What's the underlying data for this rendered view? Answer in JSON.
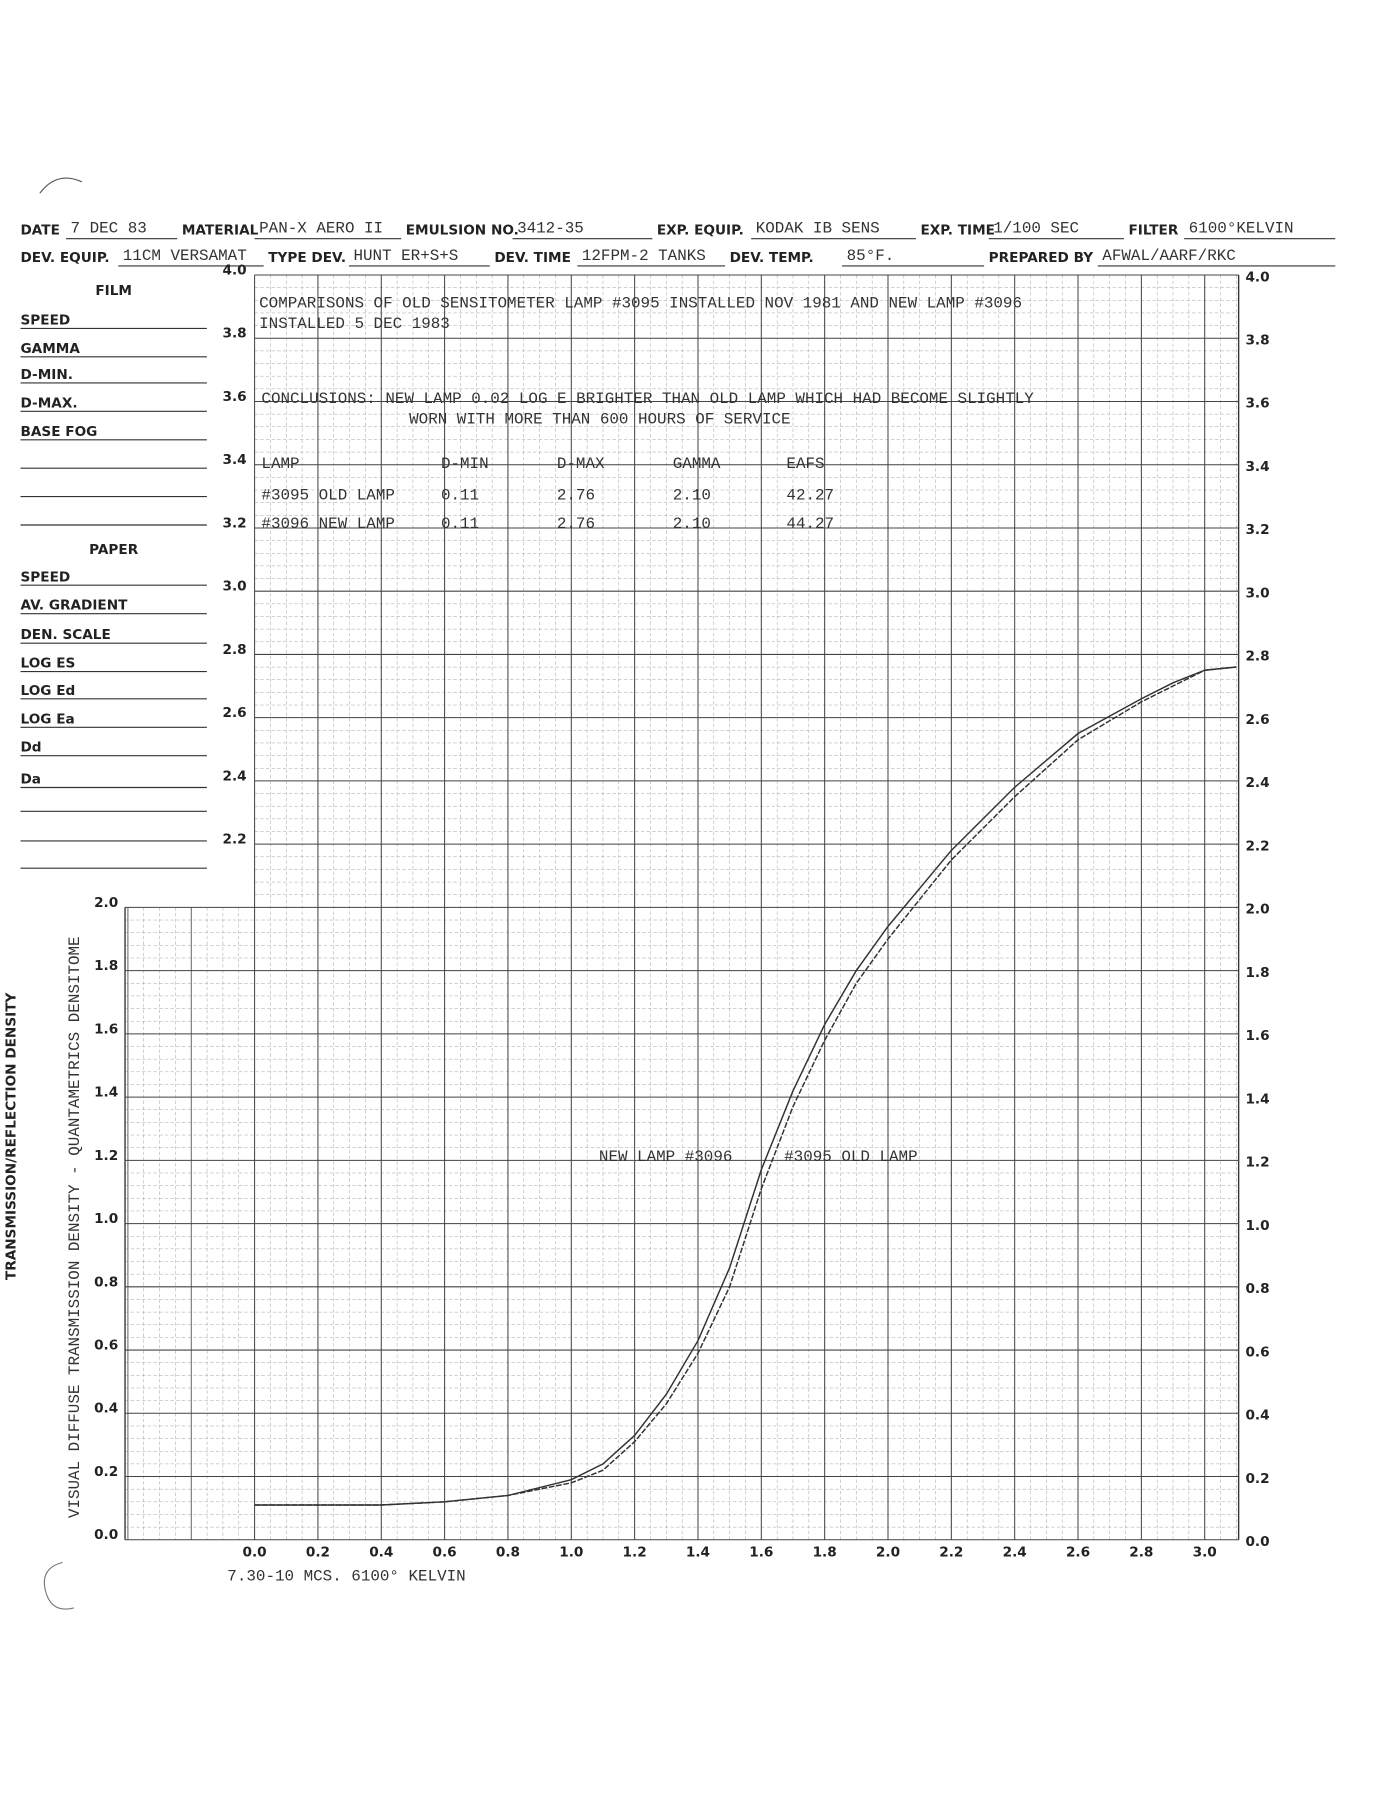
{
  "header": {
    "row1": [
      {
        "label": "DATE",
        "value": "7 DEC 83"
      },
      {
        "label": "MATERIAL",
        "value": "PAN-X AERO II"
      },
      {
        "label": "EMULSION NO.",
        "value": "3412-35"
      },
      {
        "label": "EXP. EQUIP.",
        "value": "KODAK IB SENS"
      },
      {
        "label": "EXP. TIME",
        "value": "1/100 SEC"
      },
      {
        "label": "FILTER",
        "value": "6100°KELVIN"
      }
    ],
    "row2": [
      {
        "label": "DEV. EQUIP.",
        "value": "11CM VERSAMAT"
      },
      {
        "label": "TYPE DEV.",
        "value": "HUNT ER+S+S"
      },
      {
        "label": "DEV. TIME",
        "value": "12FPM-2 TANKS"
      },
      {
        "label": "DEV. TEMP.",
        "value": "85°F."
      },
      {
        "label": "PREPARED BY",
        "value": "AFWAL/AARF/RKC"
      }
    ]
  },
  "form": {
    "film": {
      "title": "FILM",
      "fields": [
        "SPEED",
        "GAMMA",
        "D-MIN.",
        "D-MAX.",
        "BASE FOG"
      ]
    },
    "paper": {
      "title": "PAPER",
      "fields": [
        "SPEED",
        "AV. GRADIENT",
        "DEN. SCALE",
        "LOG ES",
        "LOG Ed",
        "LOG Ea",
        "Dd",
        "Da"
      ]
    }
  },
  "notes": {
    "comparison": [
      "COMPARISONS OF OLD SENSITOMETER LAMP #3095 INSTALLED NOV 1981 AND NEW LAMP #3096",
      "INSTALLED 5 DEC 1983"
    ],
    "conclusions": [
      "CONCLUSIONS:  NEW LAMP 0.02 LOG E BRIGHTER THAN OLD LAMP WHICH HAD BECOME SLIGHTLY",
      "WORN WITH MORE THAN 600 HOURS OF SERVICE"
    ]
  },
  "table": {
    "header": [
      "LAMP",
      "D-MIN",
      "D-MAX",
      "GAMMA",
      "EAFS"
    ],
    "rows": [
      [
        "#3095 OLD LAMP",
        "0.11",
        "2.76",
        "2.10",
        "42.27"
      ],
      [
        "#3096 NEW LAMP",
        "0.11",
        "2.76",
        "2.10",
        "44.27"
      ]
    ]
  },
  "chart_data": {
    "type": "line",
    "y_label": "VISUAL DIFFUSE TRANSMISSION DENSITY - QUANTAMETRICS DENSITOME",
    "y_label_outer": "TRANSMISSION/REFLECTION DENSITY",
    "x_subtitle": "7.30-10 MCS. 6100° KELVIN",
    "annotations": [
      "NEW LAMP #3096",
      "#3095 OLD LAMP"
    ],
    "x": [
      0,
      0.2,
      0.4,
      0.6,
      0.8,
      1.0,
      1.1,
      1.2,
      1.3,
      1.4,
      1.5,
      1.6,
      1.7,
      1.8,
      1.9,
      2.0,
      2.2,
      2.4,
      2.6,
      2.8,
      2.9,
      3.0,
      3.1
    ],
    "series": [
      {
        "name": "NEW LAMP #3096",
        "color": "#333333",
        "values": [
          0.11,
          0.11,
          0.11,
          0.12,
          0.14,
          0.19,
          0.24,
          0.33,
          0.46,
          0.63,
          0.86,
          1.17,
          1.42,
          1.63,
          1.8,
          1.94,
          2.18,
          2.38,
          2.55,
          2.66,
          2.71,
          2.75,
          2.76
        ]
      },
      {
        "name": "#3095 OLD LAMP",
        "color": "#333333",
        "values": [
          0.11,
          0.11,
          0.11,
          0.12,
          0.14,
          0.18,
          0.22,
          0.31,
          0.43,
          0.59,
          0.8,
          1.11,
          1.37,
          1.58,
          1.76,
          1.9,
          2.15,
          2.35,
          2.53,
          2.65,
          2.7,
          2.75,
          2.76
        ]
      }
    ],
    "xlim": [
      0,
      3.1
    ],
    "ylim": [
      0,
      4.0
    ],
    "xticks": [
      {
        "value": 0,
        "label": "0.0"
      },
      0.2,
      0.4,
      0.6,
      0.8,
      {
        "value": 1,
        "label": "1.0"
      },
      1.2,
      1.4,
      1.6,
      1.8,
      {
        "value": 2,
        "label": "2.0"
      },
      2.2,
      2.4,
      2.6,
      2.8,
      {
        "value": 3,
        "label": "3.0"
      }
    ],
    "yticks": [
      {
        "value": 0,
        "label": "0.0"
      },
      0.2,
      0.4,
      0.6,
      0.8,
      {
        "value": 1,
        "label": "1.0"
      },
      1.2,
      1.4,
      1.6,
      1.8,
      {
        "value": 2,
        "label": "2.0"
      },
      2.2,
      2.4,
      2.6,
      2.8,
      {
        "value": 3,
        "label": "3.0"
      },
      3.2,
      3.4,
      3.6,
      3.8,
      {
        "value": 4,
        "label": "4.0"
      }
    ],
    "grid": true
  }
}
